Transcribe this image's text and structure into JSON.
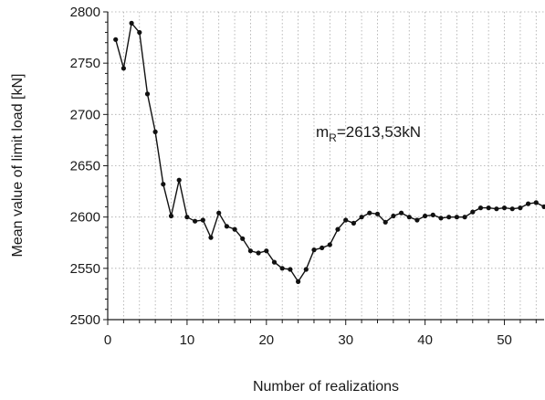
{
  "chart_data": {
    "type": "line",
    "title": "",
    "xlabel": "Number of realizations",
    "ylabel": "Mean value of limit load [kN]",
    "xlim": [
      0,
      55
    ],
    "ylim": [
      2500,
      2800
    ],
    "xticks": [
      0,
      10,
      20,
      30,
      40,
      50
    ],
    "xticks_minor": [
      2,
      4,
      6,
      8,
      12,
      14,
      16,
      18,
      22,
      24,
      26,
      28,
      32,
      34,
      36,
      38,
      42,
      44,
      46,
      48,
      52,
      54
    ],
    "yticks": [
      2500,
      2550,
      2600,
      2650,
      2700,
      2750,
      2800
    ],
    "yticks_minor": [
      2510,
      2520,
      2530,
      2540,
      2560,
      2570,
      2580,
      2590,
      2610,
      2620,
      2630,
      2640,
      2660,
      2670,
      2680,
      2690,
      2710,
      2720,
      2730,
      2740,
      2760,
      2770,
      2780,
      2790
    ],
    "grid": true,
    "grid_style": "dotted",
    "legend": "none",
    "annotation": {
      "prefix": "m",
      "subscript": "R",
      "suffix": "=2613,53kN"
    },
    "colors": {
      "line": "#111111",
      "grid": "#a8a8a8",
      "axis": "#1a1a1a"
    },
    "series": [
      {
        "x": [
          1,
          2,
          3,
          4,
          5,
          6,
          7,
          8,
          9,
          10,
          11,
          12,
          13,
          14,
          15,
          16,
          17,
          18,
          19,
          20,
          21,
          22,
          23,
          24,
          25,
          26,
          27,
          28,
          29,
          30,
          31,
          32,
          33,
          34,
          35,
          36,
          37,
          38,
          39,
          40,
          41,
          42,
          43,
          44,
          45,
          46,
          47,
          48,
          49,
          50,
          51,
          52,
          53,
          54,
          55
        ],
        "values": [
          2773,
          2745,
          2789,
          2780,
          2720,
          2683,
          2632,
          2601,
          2636,
          2600,
          2596,
          2597,
          2580,
          2604,
          2591,
          2588,
          2579,
          2567,
          2565,
          2567,
          2556,
          2550,
          2549,
          2537,
          2549,
          2568,
          2570,
          2573,
          2588,
          2597,
          2594,
          2600,
          2604,
          2603,
          2595,
          2601,
          2604,
          2600,
          2597,
          2601,
          2602,
          2599,
          2600,
          2600,
          2600,
          2605,
          2609,
          2609,
          2608,
          2609,
          2608,
          2609,
          2613,
          2614,
          2610
        ]
      }
    ]
  }
}
